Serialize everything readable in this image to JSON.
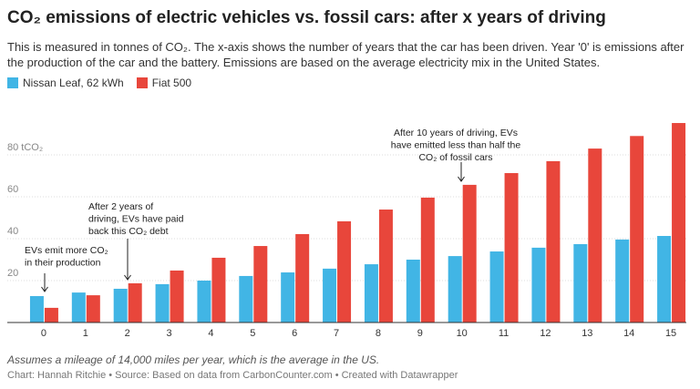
{
  "chart_data": {
    "type": "bar",
    "title": "CO₂ emissions of electric vehicles vs. fossil cars: after x years of driving",
    "subtitle": "This is measured in tonnes of CO₂. The x-axis shows the number of years that the car has been driven. Year '0' is emissions after the production of the car and the battery. Emissions are based on the average electricity mix in the United States.",
    "categories": [
      "0",
      "1",
      "2",
      "3",
      "4",
      "5",
      "6",
      "7",
      "8",
      "9",
      "10",
      "11",
      "12",
      "13",
      "14",
      "15"
    ],
    "series": [
      {
        "name": "Nissan Leaf, 62 kWh",
        "color": "#41b5e5",
        "values": [
          12.6,
          14.3,
          16.1,
          18.3,
          20,
          22.2,
          23.9,
          25.7,
          27.8,
          30,
          31.7,
          33.9,
          35.7,
          37.4,
          39.6,
          41.3
        ]
      },
      {
        "name": "Fiat 500",
        "color": "#e8463b",
        "values": [
          7,
          13,
          18.7,
          24.8,
          30.9,
          36.5,
          42.2,
          48.3,
          53.9,
          59.6,
          65.7,
          71.3,
          77,
          83,
          89,
          95.2
        ]
      }
    ],
    "ylim": [
      0,
      100
    ],
    "yticks": [
      20,
      40,
      60,
      {
        "value": 80,
        "label": "80 tCO₂"
      }
    ],
    "grid": true,
    "annotations": [
      [
        "EVs emit more CO₂",
        "in their production"
      ],
      [
        "After 2 years of",
        "driving, EVs have paid",
        "back this CO₂ debt"
      ],
      [
        "After 10 years of driving, EVs",
        "have emitted less than half the",
        "CO₂ of fossil cars"
      ]
    ],
    "notes": "Assumes a mileage of 14,000 miles per year, which is the average in the US.",
    "source": "Chart: Hannah Ritchie • Source: Based on data from CarbonCounter.com • Created with Datawrapper"
  }
}
